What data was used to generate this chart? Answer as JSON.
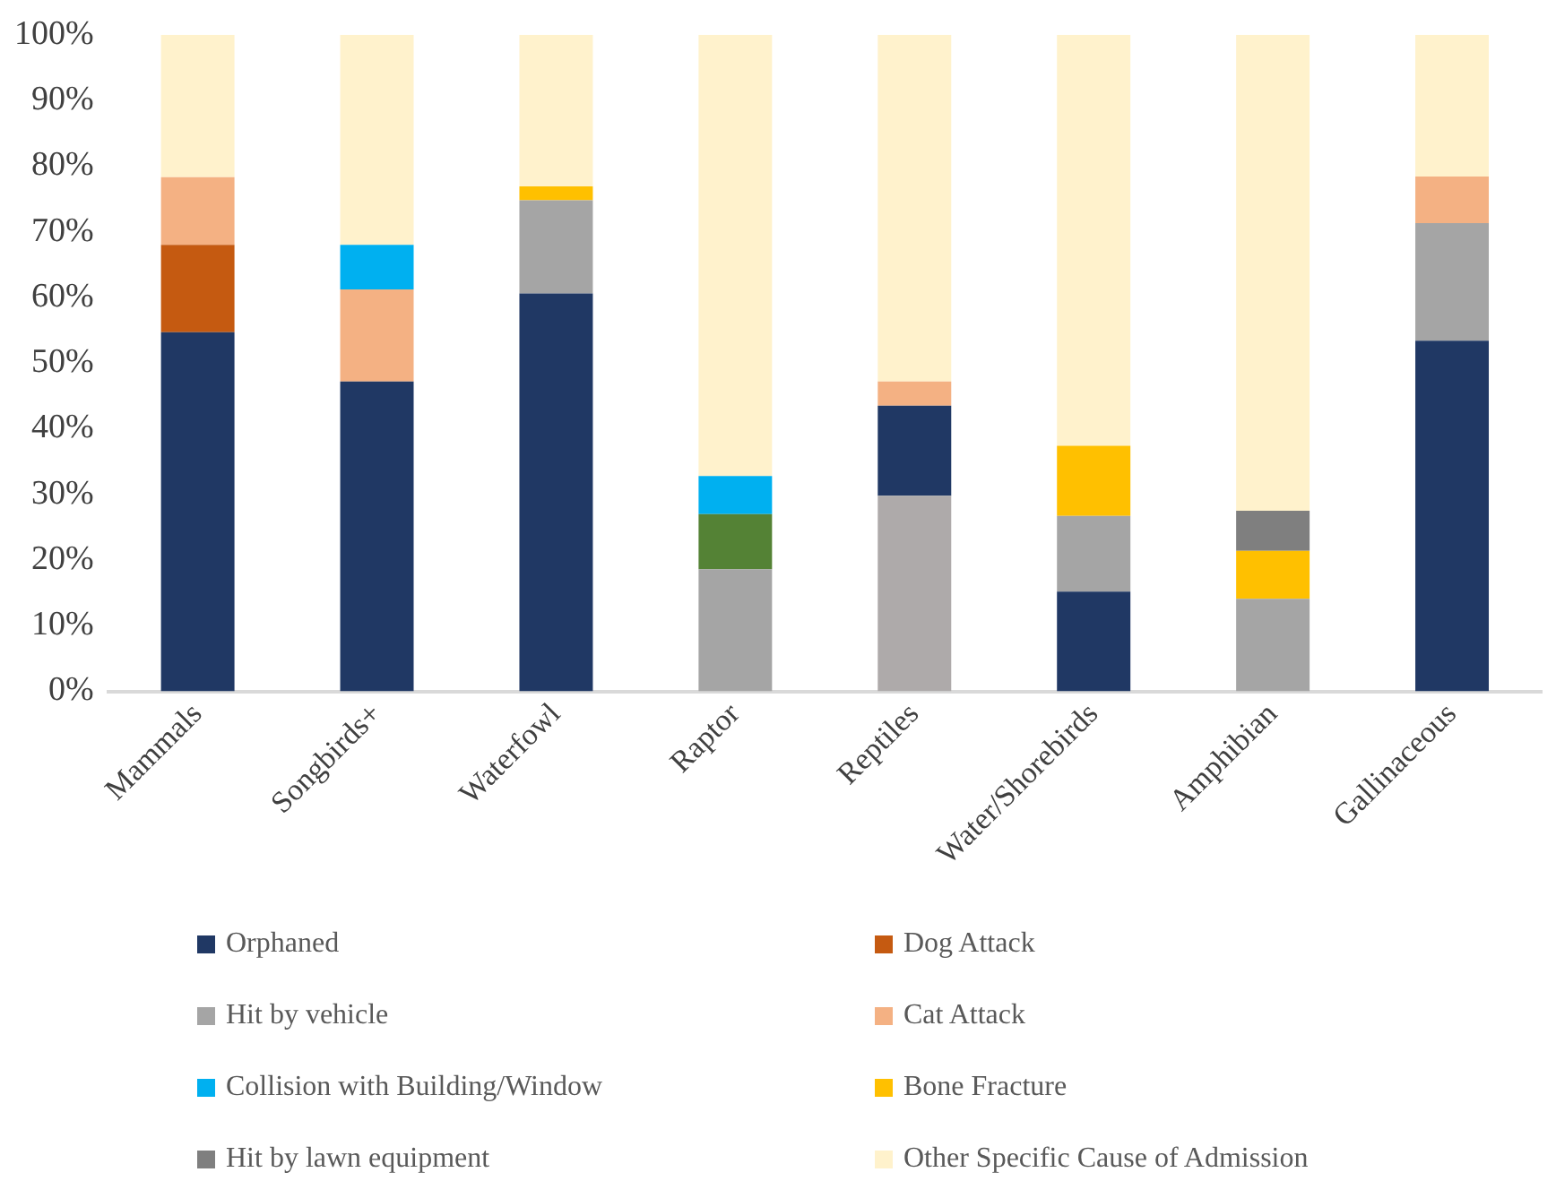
{
  "chart_data": {
    "type": "bar",
    "stacked": true,
    "legend": "bottom",
    "grid": false,
    "categories": [
      "Mammals",
      "Songbirds+",
      "Waterfowl",
      "Raptor",
      "Reptiles",
      "Water/Shorebirds",
      "Amphibian",
      "Gallinaceous"
    ],
    "ylim": [
      0,
      100
    ],
    "yticks": [
      {
        "value": 0,
        "label": "0%"
      },
      {
        "value": 10,
        "label": "10%"
      },
      {
        "value": 20,
        "label": "20%"
      },
      {
        "value": 30,
        "label": "30%"
      },
      {
        "value": 40,
        "label": "40%"
      },
      {
        "value": 50,
        "label": "50%"
      },
      {
        "value": 60,
        "label": "60%"
      },
      {
        "value": 70,
        "label": "70%"
      },
      {
        "value": 80,
        "label": "80%"
      },
      {
        "value": 90,
        "label": "90%"
      },
      {
        "value": 100,
        "label": "100%"
      }
    ],
    "series": [
      {
        "color": "#aeaaaa",
        "values": [
          null,
          null,
          null,
          null,
          29.8,
          null,
          null,
          null
        ]
      },
      {
        "name": "Orphaned",
        "color": "#203864",
        "values": [
          54.7,
          47.2,
          60.6,
          null,
          13.7,
          15.2,
          null,
          53.4
        ]
      },
      {
        "name": "Dog Attack",
        "color": "#c55a11",
        "values": [
          13.3,
          null,
          null,
          null,
          null,
          null,
          null,
          null
        ]
      },
      {
        "name": "Hit by vehicle",
        "color": "#a5a5a5",
        "values": [
          null,
          null,
          14.2,
          18.6,
          null,
          11.5,
          14.1,
          17.9
        ]
      },
      {
        "color": "#548235",
        "values": [
          null,
          null,
          null,
          8.4,
          null,
          null,
          null,
          null
        ]
      },
      {
        "name": "Cat Attack",
        "color": "#f4b183",
        "values": [
          10.3,
          14.0,
          null,
          null,
          3.7,
          null,
          null,
          7.1
        ]
      },
      {
        "name": "Collision with Building/Window",
        "color": "#00b0f0",
        "values": [
          null,
          6.8,
          null,
          5.8,
          null,
          null,
          null,
          null
        ]
      },
      {
        "name": "Bone Fracture",
        "color": "#ffc000",
        "values": [
          null,
          null,
          2.1,
          null,
          null,
          10.7,
          7.3,
          null
        ]
      },
      {
        "name": "Hit by lawn equipment",
        "color": "#7f7f7f",
        "values": [
          null,
          null,
          null,
          null,
          null,
          null,
          6.1,
          null
        ]
      },
      {
        "name": "Other Specific Cause of Admission",
        "color": "#fff2cc",
        "values": [
          21.7,
          32.0,
          23.1,
          67.2,
          52.8,
          62.6,
          72.5,
          21.6
        ]
      }
    ]
  }
}
